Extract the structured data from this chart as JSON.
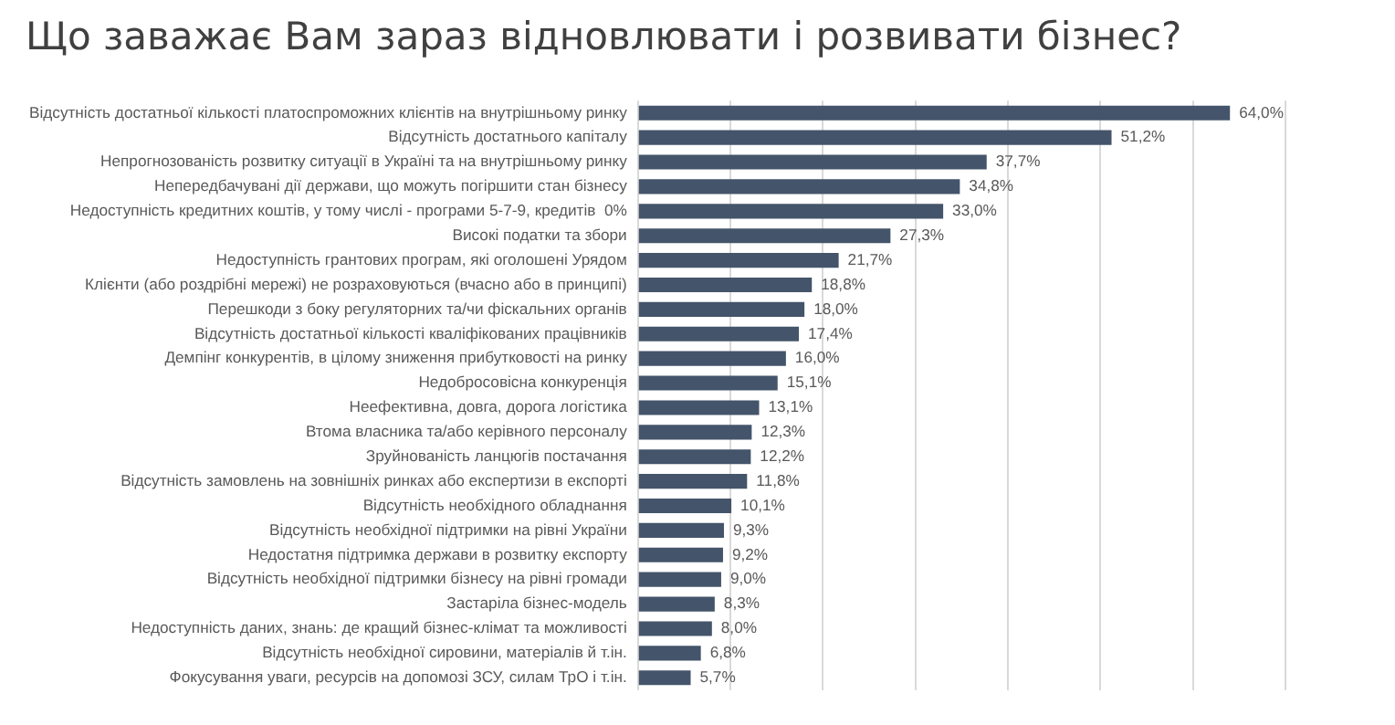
{
  "chart_data": {
    "type": "bar",
    "orientation": "horizontal",
    "title": "Що заважає Вам зараз відновлювати і розвивати бізнес?",
    "categories": [
      "Відсутність достатньої кількості платоспроможних клієнтів на внутрішньому ринку",
      "Відсутність достатнього капіталу",
      "Непрогнозованість розвитку ситуації в Україні та на внутрішньому ринку",
      "Непередбачувані дії держави, що можуть погіршити стан бізнесу",
      "Недоступність кредитних коштів, у тому числі - програми 5-7-9, кредитів  0%",
      "Високі податки та збори",
      "Недоступність грантових програм, які оголошені Урядом",
      "Клієнти (або роздрібні мережі) не розраховуються (вчасно або в принципі)",
      "Перешкоди з боку регуляторних та/чи фіскальних органів",
      "Відсутність достатньої кількості кваліфікованих працівників",
      "Демпінг конкурентів, в цілому зниження прибутковості на ринку",
      "Недобросовісна конкуренція",
      "Неефективна, довга, дорога логістика",
      "Втома власника та/або керівного персоналу",
      "Зруйнованість ланцюгів постачання",
      "Відсутність замовлень на зовнішніх ринках або експертизи в експорті",
      "Відсутність необхідного обладнання",
      "Відсутність необхідної підтримки на рівні України",
      "Недостатня підтримка держави в розвитку експорту",
      "Відсутність необхідної підтримки бізнесу на рівні громади",
      "Застаріла бізнес-модель",
      "Недоступність даних, знань: де кращий бізнес-клімат та можливості",
      "Відсутність необхідної сировини, матеріалів й т.ін.",
      "Фокусування уваги, ресурсів на допомозі ЗСУ, силам ТрО і т.ін."
    ],
    "values": [
      64.0,
      51.2,
      37.7,
      34.8,
      33.0,
      27.3,
      21.7,
      18.8,
      18.0,
      17.4,
      16.0,
      15.1,
      13.1,
      12.3,
      12.2,
      11.8,
      10.1,
      9.3,
      9.2,
      9.0,
      8.3,
      8.0,
      6.8,
      5.7
    ],
    "value_labels": [
      "64,0%",
      "51,2%",
      "37,7%",
      "34,8%",
      "33,0%",
      "27,3%",
      "21,7%",
      "18,8%",
      "18,0%",
      "17,4%",
      "16,0%",
      "15,1%",
      "13,1%",
      "12,3%",
      "12,2%",
      "11,8%",
      "10,1%",
      "9,3%",
      "9,2%",
      "9,0%",
      "8,3%",
      "8,0%",
      "6,8%",
      "5,7%"
    ],
    "color": "#44546a",
    "xlim": [
      0,
      70
    ],
    "xticks": [
      {
        "value": 0,
        "label": null
      },
      {
        "value": 10,
        "label": null
      },
      {
        "value": 20,
        "label": null
      },
      {
        "value": 30,
        "label": null
      },
      {
        "value": 40,
        "label": null
      },
      {
        "value": 50,
        "label": null
      },
      {
        "value": 60,
        "label": null
      },
      {
        "value": 70,
        "label": null
      }
    ],
    "grid": "x",
    "tick_labels": "y",
    "legend": false
  }
}
